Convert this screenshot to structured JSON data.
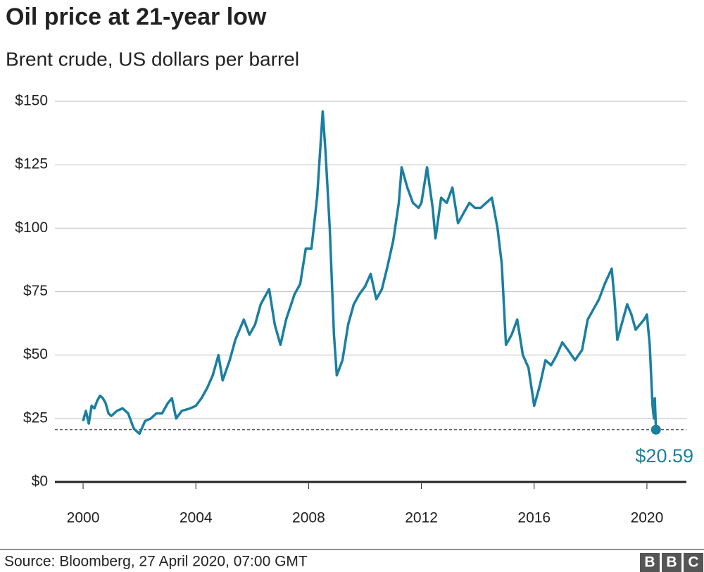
{
  "chart_data": {
    "type": "line",
    "title": "Oil price at 21-year low",
    "subtitle": "Brent crude, US dollars per barrel",
    "source": "Source: Bloomberg, 27 April 2020, 07:00 GMT",
    "logo": [
      "B",
      "B",
      "C"
    ],
    "xlim": [
      1999,
      2021.4
    ],
    "xticks": [
      2000,
      2004,
      2008,
      2012,
      2016,
      2020
    ],
    "ylim": [
      0,
      150
    ],
    "yticks": [
      {
        "value": 0,
        "label": "$0"
      },
      {
        "value": 25,
        "label": "$25"
      },
      {
        "value": 50,
        "label": "$50"
      },
      {
        "value": 75,
        "label": "$75"
      },
      {
        "value": 100,
        "label": "$100"
      },
      {
        "value": 125,
        "label": "$125"
      },
      {
        "value": 150,
        "label": "$150"
      }
    ],
    "grid": true,
    "series": [
      {
        "name": "Brent crude",
        "color": "#1a7fa0",
        "x": [
          2000.0,
          2000.1,
          2000.2,
          2000.3,
          2000.4,
          2000.5,
          2000.6,
          2000.7,
          2000.8,
          2000.9,
          2001.0,
          2001.2,
          2001.4,
          2001.6,
          2001.8,
          2001.9,
          2002.0,
          2002.2,
          2002.4,
          2002.6,
          2002.8,
          2003.0,
          2003.15,
          2003.3,
          2003.5,
          2003.8,
          2004.0,
          2004.2,
          2004.4,
          2004.6,
          2004.8,
          2004.95,
          2005.2,
          2005.4,
          2005.7,
          2005.9,
          2006.1,
          2006.3,
          2006.6,
          2006.8,
          2007.0,
          2007.2,
          2007.5,
          2007.7,
          2007.9,
          2008.1,
          2008.3,
          2008.5,
          2008.6,
          2008.75,
          2008.9,
          2009.0,
          2009.2,
          2009.4,
          2009.6,
          2009.8,
          2010.0,
          2010.2,
          2010.4,
          2010.6,
          2010.8,
          2011.0,
          2011.2,
          2011.3,
          2011.5,
          2011.7,
          2011.9,
          2012.0,
          2012.2,
          2012.4,
          2012.5,
          2012.7,
          2012.9,
          2013.1,
          2013.3,
          2013.5,
          2013.7,
          2013.9,
          2014.1,
          2014.3,
          2014.5,
          2014.7,
          2014.85,
          2015.0,
          2015.2,
          2015.4,
          2015.6,
          2015.8,
          2016.0,
          2016.2,
          2016.4,
          2016.6,
          2016.8,
          2017.0,
          2017.2,
          2017.45,
          2017.7,
          2017.9,
          2018.1,
          2018.3,
          2018.5,
          2018.75,
          2018.85,
          2018.95,
          2019.1,
          2019.3,
          2019.45,
          2019.6,
          2019.75,
          2019.9,
          2020.0,
          2020.1,
          2020.2,
          2020.25,
          2020.28,
          2020.32
        ],
        "values": [
          24,
          28,
          23,
          30,
          29,
          32,
          34,
          33,
          31,
          27,
          26,
          28,
          29,
          27,
          21,
          20,
          19,
          24,
          25,
          27,
          27,
          31,
          33,
          25,
          28,
          29,
          30,
          33,
          37,
          42,
          50,
          40,
          48,
          56,
          64,
          58,
          62,
          70,
          76,
          62,
          54,
          64,
          74,
          78,
          92,
          92,
          112,
          146,
          130,
          100,
          58,
          42,
          48,
          62,
          70,
          74,
          77,
          82,
          72,
          76,
          85,
          95,
          110,
          124,
          116,
          110,
          108,
          110,
          124,
          108,
          96,
          112,
          110,
          116,
          102,
          106,
          110,
          108,
          108,
          110,
          112,
          100,
          86,
          54,
          58,
          64,
          50,
          45,
          30,
          38,
          48,
          46,
          50,
          55,
          52,
          48,
          52,
          64,
          68,
          72,
          78,
          84,
          72,
          56,
          62,
          70,
          66,
          60,
          62,
          64,
          66,
          54,
          30,
          25,
          33,
          20.59
        ]
      }
    ],
    "annotation": {
      "x": 2020.32,
      "value": 20.59,
      "label": "$20.59"
    }
  }
}
